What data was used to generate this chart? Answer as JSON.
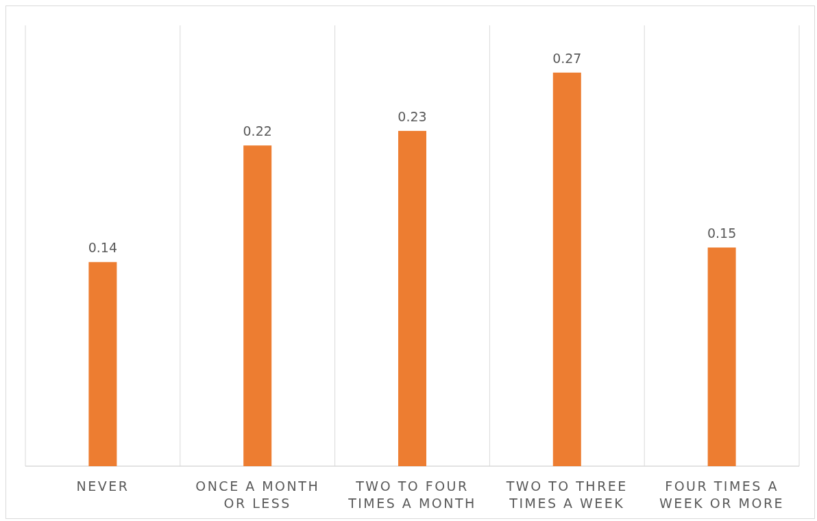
{
  "chart_data": {
    "type": "bar",
    "categories": [
      "NEVER",
      "ONCE A MONTH OR LESS",
      "TWO TO FOUR TIMES A MONTH",
      "TWO TO THREE TIMES A WEEK",
      "FOUR TIMES A WEEK OR MORE"
    ],
    "values": [
      0.14,
      0.22,
      0.23,
      0.27,
      0.15
    ],
    "color": "#ed7d31",
    "data_labels": true,
    "grid": "x"
  }
}
